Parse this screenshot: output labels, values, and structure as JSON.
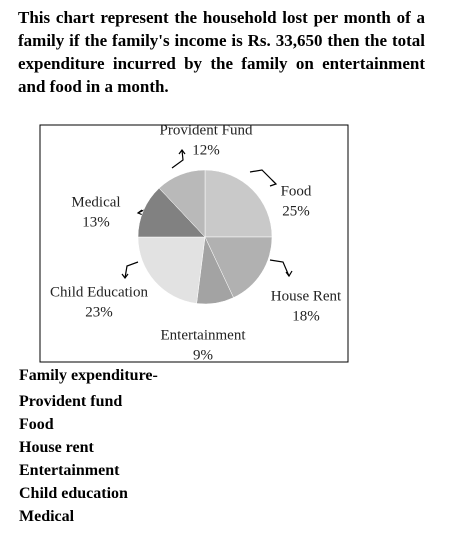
{
  "question": "This chart represent the household lost per month of a family if the family's income is Rs. 33,650 then the total expenditure incurred by the family on entertainment and food in a month.",
  "chart_data": {
    "type": "pie",
    "categories": [
      "Food",
      "House Rent",
      "Entertainment",
      "Child Education",
      "Medical",
      "Provident Fund"
    ],
    "values": [
      25,
      18,
      9,
      23,
      13,
      12
    ],
    "value_labels": [
      "25%",
      "18%",
      "9%",
      "23%",
      "13%",
      "12%"
    ],
    "colors": [
      "#c9c9c9",
      "#b1b1b1",
      "#a3a3a3",
      "#e2e2e2",
      "#818181",
      "#b9b9b9"
    ]
  },
  "answer_section": {
    "heading": "Family expenditure-",
    "items": [
      "Provident fund",
      "Food",
      "House rent",
      "Entertainment",
      "Child education",
      "Medical"
    ]
  }
}
